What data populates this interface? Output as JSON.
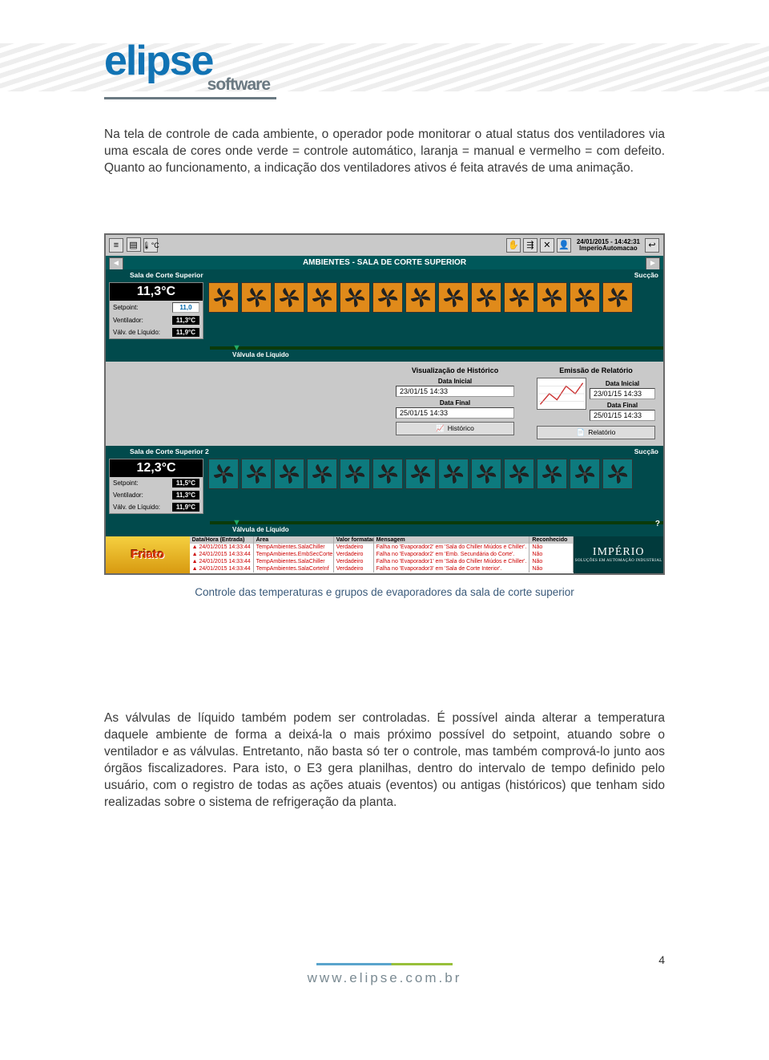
{
  "logo": {
    "main": "elipse",
    "sub": "software"
  },
  "para1": "Na tela de controle de cada ambiente, o operador pode monitorar o atual status dos ventiladores via uma escala de cores onde verde = controle automático, laranja = manual e vermelho = com defeito. Quanto ao funcionamento, a indicação dos ventiladores ativos é feita através de uma animação.",
  "caption": "Controle das temperaturas e grupos de evaporadores da sala de corte superior",
  "para2": "As válvulas de líquido também podem ser controladas. É possível ainda alterar a temperatura daquele ambiente de forma a deixá-la o mais próximo possível do setpoint, atuando sobre o ventilador e as válvulas. Entretanto, não basta só ter o controle, mas também comprová-lo junto aos órgãos fiscalizadores. Para isto, o E3 gera planilhas, dentro do intervalo de tempo definido pelo usuário, com o registro de todas as ações atuais (eventos) ou antigas (históricos) que tenham sido realizadas sobre o sistema de refrigeração da planta.",
  "footer": {
    "url": "www.elipse.com.br",
    "page": "4"
  },
  "shot": {
    "clock_line1": "24/01/2015 - 14:42:31",
    "clock_line2": "ImperioAutomacao",
    "title": "AMBIENTES - SALA DE CORTE SUPERIOR",
    "suction": "Sucção",
    "liquid_valve": "Válvula de Líquido",
    "zone1": {
      "name": "Sala de Corte Superior",
      "temp": "11,3°C",
      "setpoint_label": "Setpoint:",
      "setpoint": "11,0",
      "vent_label": "Ventilador:",
      "vent": "11,3°C",
      "valv_label": "Válv. de Líquido:",
      "valv": "11,9°C",
      "fan_colors": [
        "ora",
        "ora",
        "ora",
        "ora",
        "ora",
        "ora",
        "ora",
        "ora",
        "ora",
        "ora",
        "ora",
        "ora",
        "ora"
      ]
    },
    "zone2": {
      "name": "Sala de Corte Superior 2",
      "temp": "12,3°C",
      "setpoint_label": "Setpoint:",
      "setpoint": "11,5°C",
      "vent_label": "Ventilador:",
      "vent": "11,3°C",
      "valv_label": "Válv. de Líquido:",
      "valv": "11,9°C",
      "fan_colors": [
        "teal",
        "teal",
        "teal",
        "teal",
        "teal",
        "teal",
        "teal",
        "teal",
        "teal",
        "teal",
        "teal",
        "teal",
        "teal"
      ]
    },
    "hist": {
      "title": "Visualização de Histórico",
      "di_label": "Data Inicial",
      "di": "23/01/15 14:33",
      "df_label": "Data Final",
      "df": "25/01/15 14:33",
      "btn": "Histórico"
    },
    "rel": {
      "title": "Emissão de Relatório",
      "di_label": "Data Inicial",
      "di": "23/01/15 14:33",
      "df_label": "Data Final",
      "df": "25/01/15 14:33",
      "btn": "Relatório"
    },
    "alarms": {
      "hdr": {
        "c1": "Data/Hora (Entrada)",
        "c2": "Área",
        "c3": "Valor formatado",
        "c4": "Mensagem",
        "c5": "Reconhecido"
      },
      "rows": [
        {
          "c1": "24/01/2015 14:33:44",
          "c2": "TempAmbientes.SalaChiller",
          "c3": "Verdadeiro",
          "c4": "Falha no 'Evaporador2' em 'Sala do Chiller Miúdos e Chiller'.",
          "c5": "Não"
        },
        {
          "c1": "24/01/2015 14:33:44",
          "c2": "TempAmbientes.EmbSecCorte",
          "c3": "Verdadeiro",
          "c4": "Falha no 'Evaporador2' em 'Emb. Secundária do Corte'.",
          "c5": "Não"
        },
        {
          "c1": "24/01/2015 14:33:44",
          "c2": "TempAmbientes.SalaChiller",
          "c3": "Verdadeiro",
          "c4": "Falha no 'Evaporador1' em 'Sala do Chiller Miúdos e Chiller'.",
          "c5": "Não"
        },
        {
          "c1": "24/01/2015 14:33:44",
          "c2": "TempAmbientes.SalaCorteInf",
          "c3": "Verdadeiro",
          "c4": "Falha no 'Evaporador3' em 'Sala de Corte Interior'.",
          "c5": "Não"
        }
      ]
    },
    "friato": "Friato",
    "imperio": {
      "t1": "IMPÉRIO",
      "t2": "SOLUÇÕES EM AUTOMAÇÃO INDUSTRIAL"
    }
  }
}
